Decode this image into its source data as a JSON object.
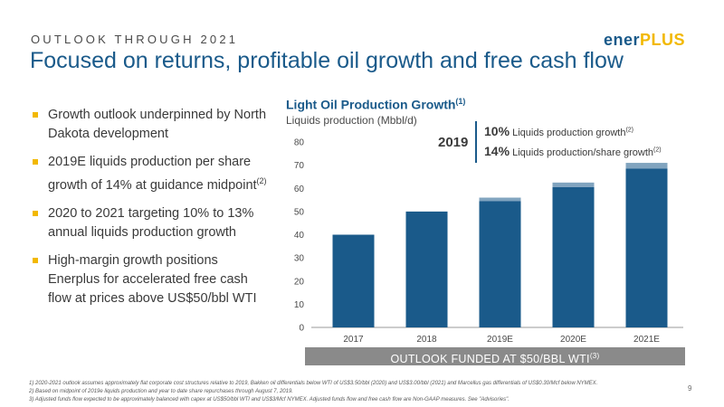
{
  "header": {
    "eyebrow": "OUTLOOK THROUGH 2021",
    "title": "Focused on returns, profitable oil growth and free cash flow",
    "logo_main": "ener",
    "logo_accent": "PLUS"
  },
  "bullets": [
    {
      "text": "Growth outlook underpinned by North Dakota development",
      "sup": ""
    },
    {
      "text": "2019E liquids production per share growth of 14% at guidance midpoint",
      "sup": "(2)"
    },
    {
      "text": "2020 to 2021 targeting 10% to 13% annual liquids production growth",
      "sup": ""
    },
    {
      "text": "High-margin growth positions Enerplus for accelerated free cash flow at prices above US$50/bbl WTI",
      "sup": ""
    }
  ],
  "callout": {
    "year": "2019",
    "rows": [
      {
        "pct": "10%",
        "label": "Liquids production growth",
        "sup": "(2)"
      },
      {
        "pct": "14%",
        "label": "Liquids production/share growth",
        "sup": "(2)"
      }
    ]
  },
  "banner": {
    "text": "OUTLOOK FUNDED AT $50/BBL WTI",
    "sup": "(3)"
  },
  "footnotes": [
    "1)  2020-2021 outlook assumes approximately flat corporate cost structures relative to 2019, Bakken oil differentials below WTI of US$3.50/bbl (2020) and US$3.00/bbl (2021) and Marcellus gas differentials of US$0.30/Mcf below NYMEX.",
    "2)  Based on midpoint of 2019e liquids production and year to date share repurchases through August 7, 2019.",
    "3)  Adjusted funds flow expected to be approximately balanced with capex at US$50/bbl WTI and US$3/Mcf NYMEX. Adjusted funds flow and free cash flow are Non-GAAP measures. See \"Advisories\"."
  ],
  "page_number": "9",
  "colors": {
    "bar": "#1a5a8a",
    "accent": "#f2b800",
    "banner": "#8a8a8a"
  },
  "chart_data": {
    "type": "bar",
    "title": "Light Oil Production Growth",
    "title_sup": "(1)",
    "ylabel": "Liquids production (Mbbl/d)",
    "categories": [
      "2017",
      "2018",
      "2019E",
      "2020E",
      "2021E"
    ],
    "values": [
      40,
      50,
      54.5,
      60.5,
      68.5
    ],
    "range_top": [
      null,
      null,
      56,
      62.5,
      71
    ],
    "yticks": [
      0,
      10,
      20,
      30,
      40,
      50,
      60,
      70,
      80
    ],
    "ylim": [
      0,
      80
    ],
    "grid": false
  }
}
